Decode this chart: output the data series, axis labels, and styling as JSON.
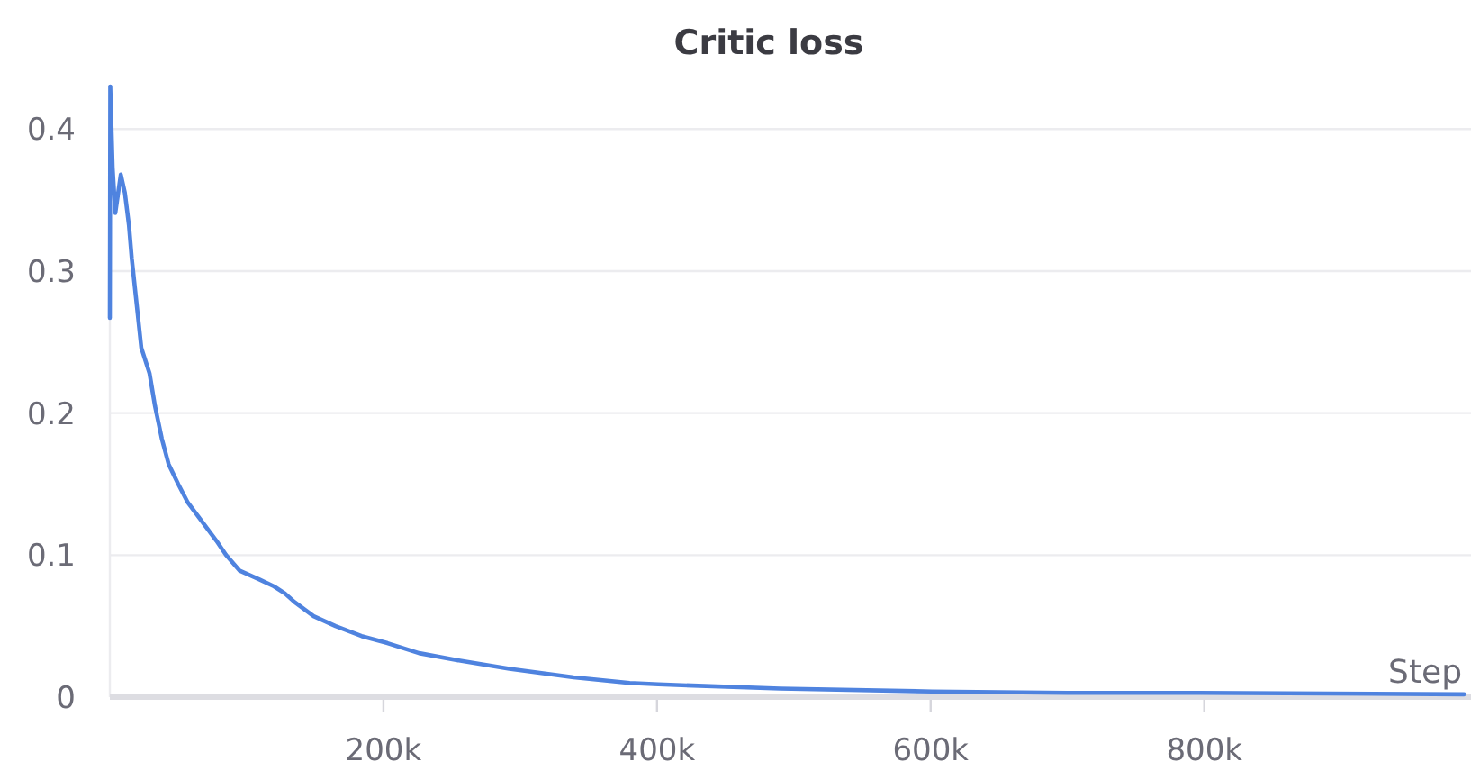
{
  "chart_data": {
    "type": "line",
    "title": "Critic loss",
    "xlabel": "Step",
    "x": [
      0,
      300,
      2000,
      4000,
      8000,
      11000,
      14000,
      16000,
      19000,
      23000,
      29000,
      33000,
      38000,
      43000,
      50000,
      57000,
      64000,
      71000,
      78000,
      85000,
      95000,
      109000,
      120000,
      128000,
      135000,
      149000,
      165000,
      184000,
      203000,
      226000,
      254000,
      292000,
      339000,
      380000,
      401000,
      490000,
      601000,
      700000,
      797000,
      990000
    ],
    "series": [
      {
        "color": "#4f83df",
        "values": [
          0.267,
          0.43,
          0.373,
          0.341,
          0.368,
          0.355,
          0.332,
          0.309,
          0.282,
          0.246,
          0.228,
          0.205,
          0.182,
          0.164,
          0.15,
          0.137,
          0.128,
          0.119,
          0.11,
          0.1,
          0.089,
          0.083,
          0.078,
          0.073,
          0.067,
          0.057,
          0.05,
          0.043,
          0.038,
          0.031,
          0.026,
          0.02,
          0.014,
          0.01,
          0.009,
          0.006,
          0.004,
          0.003,
          0.003,
          0.002
        ]
      }
    ],
    "xlim": [
      0,
      995000
    ],
    "xticks": [
      {
        "value": 200000,
        "label": "200k"
      },
      {
        "value": 400000,
        "label": "400k"
      },
      {
        "value": 600000,
        "label": "600k"
      },
      {
        "value": 800000,
        "label": "800k"
      }
    ],
    "ylim": [
      0,
      0.43
    ],
    "yticks": [
      0,
      0.1,
      0.2,
      0.3,
      0.4
    ],
    "grid": "y"
  }
}
